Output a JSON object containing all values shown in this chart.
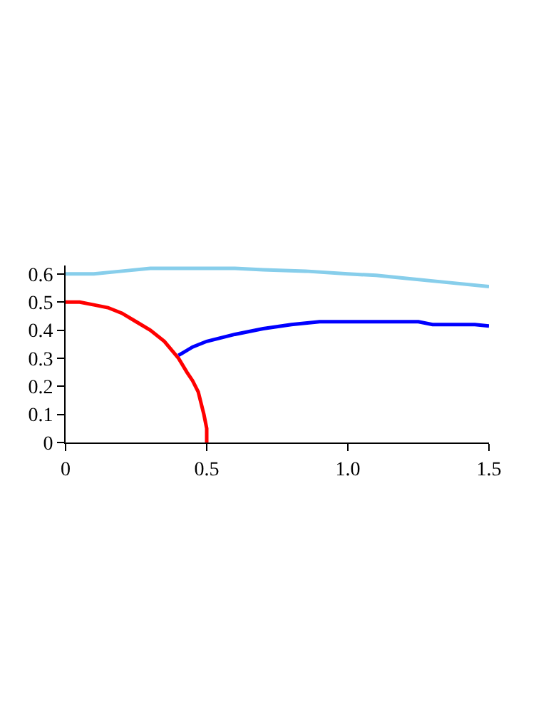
{
  "chart_data": {
    "type": "line",
    "xlim": [
      0,
      1.5
    ],
    "ylim": [
      0,
      0.63
    ],
    "xticks": [
      0,
      0.5,
      {
        "value": 1,
        "label": "1.0"
      },
      1.5
    ],
    "yticks": [
      0,
      0.1,
      0.2,
      0.3,
      0.4,
      0.5,
      0.6
    ],
    "legend": false,
    "marker": "none",
    "line_style": "solid",
    "series": [
      {
        "color": "#87ceeb",
        "x": [
          0,
          0.1,
          0.2,
          0.3,
          0.45,
          0.6,
          0.7,
          0.85,
          1.0,
          1.1,
          1.2,
          1.35,
          1.5
        ],
        "values": [
          0.6,
          0.6,
          0.61,
          0.62,
          0.62,
          0.62,
          0.615,
          0.61,
          0.6,
          0.595,
          0.585,
          0.57,
          0.555
        ]
      },
      {
        "color": "#ff0000",
        "x": [
          0,
          0.05,
          0.1,
          0.15,
          0.2,
          0.25,
          0.3,
          0.35,
          0.4,
          0.43,
          0.45,
          0.47,
          0.48,
          0.49,
          0.5,
          0.5
        ],
        "values": [
          0.5,
          0.5,
          0.49,
          0.48,
          0.46,
          0.43,
          0.4,
          0.36,
          0.3,
          0.25,
          0.22,
          0.18,
          0.14,
          0.1,
          0.05,
          0
        ]
      },
      {
        "color": "#0000ff",
        "x": [
          0.4,
          0.45,
          0.5,
          0.6,
          0.7,
          0.8,
          0.9,
          1.0,
          1.1,
          1.25,
          1.3,
          1.45,
          1.5
        ],
        "values": [
          0.31,
          0.34,
          0.36,
          0.385,
          0.405,
          0.42,
          0.43,
          0.43,
          0.43,
          0.43,
          0.42,
          0.42,
          0.415
        ]
      }
    ]
  }
}
